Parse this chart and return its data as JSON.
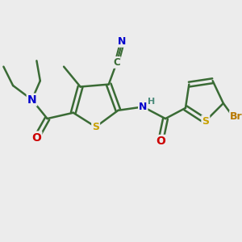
{
  "bg_color": "#ececec",
  "bond_color": "#3a6b35",
  "atom_colors": {
    "S": "#c8a000",
    "N": "#0000cc",
    "O": "#cc0000",
    "Br": "#b87800",
    "H": "#4a8a7a"
  },
  "fig_size": [
    3.0,
    3.0
  ],
  "dpi": 100
}
